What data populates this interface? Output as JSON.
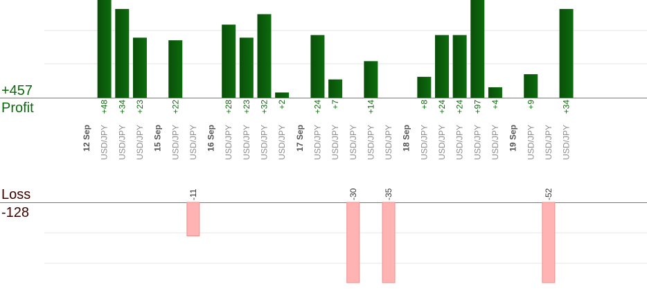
{
  "summary": {
    "profit_total": "+457",
    "profit_label": "Profit",
    "loss_label": "Loss",
    "loss_total": "-128"
  },
  "colors": {
    "profit_bar": "#0b5e0b",
    "profit_text": "#0a6a0a",
    "loss_bar": "#ffb3b3",
    "loss_text": "#333333",
    "date_text": "#555555",
    "pair_text": "#8c8c8c",
    "grid": "#e6e6e6"
  },
  "chart_data": {
    "type": "bar",
    "xlabel": "",
    "ylabel": "",
    "profit_scale_max": 30,
    "loss_scale_max": 30,
    "slots": [
      {
        "kind": "date",
        "label": "12 Sep"
      },
      {
        "kind": "trade",
        "label": "USD/JPY",
        "value": 48
      },
      {
        "kind": "trade",
        "label": "USD/JPY",
        "value": 34
      },
      {
        "kind": "trade",
        "label": "USD/JPY",
        "value": 23
      },
      {
        "kind": "date",
        "label": "15 Sep"
      },
      {
        "kind": "trade",
        "label": "USD/JPY",
        "value": 22
      },
      {
        "kind": "trade",
        "label": "USD/JPY",
        "value": -11
      },
      {
        "kind": "date",
        "label": "16 Sep"
      },
      {
        "kind": "trade",
        "label": "USD/JPY",
        "value": 28
      },
      {
        "kind": "trade",
        "label": "USD/JPY",
        "value": 23
      },
      {
        "kind": "trade",
        "label": "USD/JPY",
        "value": 32
      },
      {
        "kind": "trade",
        "label": "USD/JPY",
        "value": 2
      },
      {
        "kind": "date",
        "label": "17 Sep"
      },
      {
        "kind": "trade",
        "label": "USD/JPY",
        "value": 24
      },
      {
        "kind": "trade",
        "label": "USD/JPY",
        "value": 7
      },
      {
        "kind": "trade",
        "label": "USD/JPY",
        "value": -30
      },
      {
        "kind": "trade",
        "label": "USD/JPY",
        "value": 14
      },
      {
        "kind": "trade",
        "label": "USD/JPY",
        "value": -35
      },
      {
        "kind": "date",
        "label": "18 Sep"
      },
      {
        "kind": "trade",
        "label": "USD/JPY",
        "value": 8
      },
      {
        "kind": "trade",
        "label": "USD/JPY",
        "value": 24
      },
      {
        "kind": "trade",
        "label": "USD/JPY",
        "value": 24
      },
      {
        "kind": "trade",
        "label": "USD/JPY",
        "value": 97
      },
      {
        "kind": "trade",
        "label": "USD/JPY",
        "value": 4
      },
      {
        "kind": "date",
        "label": "19 Sep"
      },
      {
        "kind": "trade",
        "label": "USD/JPY",
        "value": 9
      },
      {
        "kind": "trade",
        "label": "USD/JPY",
        "value": -52
      },
      {
        "kind": "trade",
        "label": "USD/JPY",
        "value": 34
      }
    ]
  }
}
